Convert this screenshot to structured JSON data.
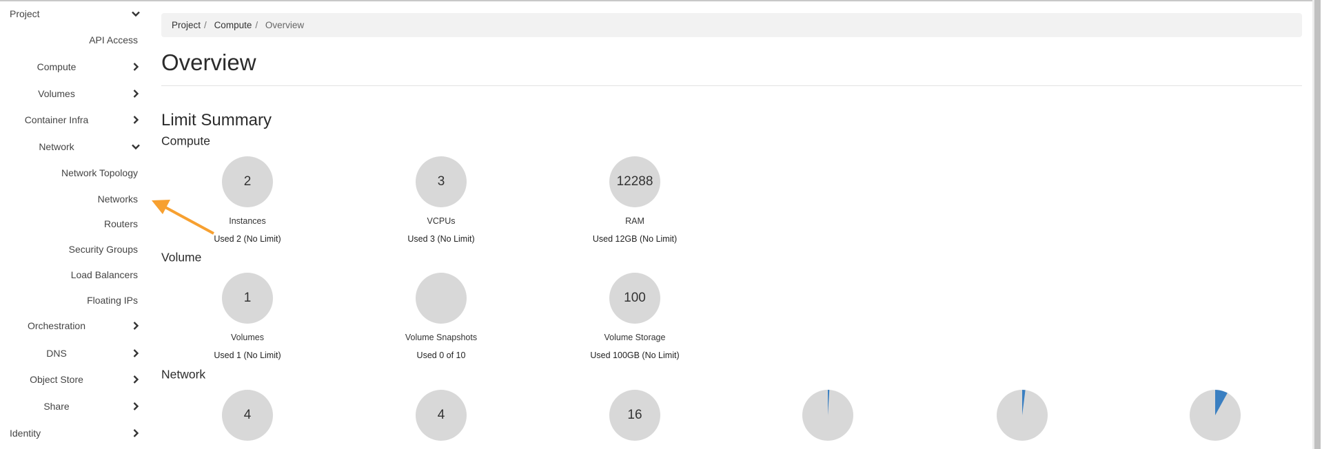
{
  "sidebar": {
    "project": "Project",
    "items": [
      {
        "label": "API Access",
        "kind": "sub"
      },
      {
        "label": "Compute",
        "kind": "mid",
        "chevron": "right"
      },
      {
        "label": "Volumes",
        "kind": "mid",
        "chevron": "right"
      },
      {
        "label": "Container Infra",
        "kind": "mid",
        "chevron": "right"
      },
      {
        "label": "Network",
        "kind": "mid",
        "chevron": "down"
      },
      {
        "label": "Network Topology",
        "kind": "sub"
      },
      {
        "label": "Networks",
        "kind": "sub"
      },
      {
        "label": "Routers",
        "kind": "sub"
      },
      {
        "label": "Security Groups",
        "kind": "sub"
      },
      {
        "label": "Load Balancers",
        "kind": "sub"
      },
      {
        "label": "Floating IPs",
        "kind": "sub"
      },
      {
        "label": "Orchestration",
        "kind": "mid",
        "chevron": "right"
      },
      {
        "label": "DNS",
        "kind": "mid",
        "chevron": "right"
      },
      {
        "label": "Object Store",
        "kind": "mid",
        "chevron": "right"
      },
      {
        "label": "Share",
        "kind": "mid",
        "chevron": "right"
      }
    ],
    "identity": "Identity"
  },
  "breadcrumb": [
    "Project",
    "Compute",
    "Overview"
  ],
  "page_title": "Overview",
  "limit_summary": {
    "title": "Limit Summary",
    "sections": [
      {
        "title": "Compute",
        "charts": [
          {
            "value": "2",
            "label": "Instances",
            "used": "Used 2 (No Limit)"
          },
          {
            "value": "3",
            "label": "VCPUs",
            "used": "Used 3 (No Limit)"
          },
          {
            "value": "12288",
            "label": "RAM",
            "used": "Used 12GB (No Limit)"
          }
        ]
      },
      {
        "title": "Volume",
        "charts": [
          {
            "value": "1",
            "label": "Volumes",
            "used": "Used 1 (No Limit)"
          },
          {
            "value": "",
            "label": "Volume Snapshots",
            "used": "Used 0 of 10"
          },
          {
            "value": "100",
            "label": "Volume Storage",
            "used": "Used 100GB (No Limit)"
          }
        ]
      },
      {
        "title": "Network",
        "charts": [
          {
            "value": "4"
          },
          {
            "value": "4"
          },
          {
            "value": "16"
          },
          {
            "fraction": 0.01
          },
          {
            "fraction": 0.02
          },
          {
            "fraction": 0.08
          }
        ]
      }
    ]
  },
  "colors": {
    "pie_fill": "#d8d8d8",
    "pie_used": "#3a7fc1",
    "arrow": "#f7a030"
  }
}
